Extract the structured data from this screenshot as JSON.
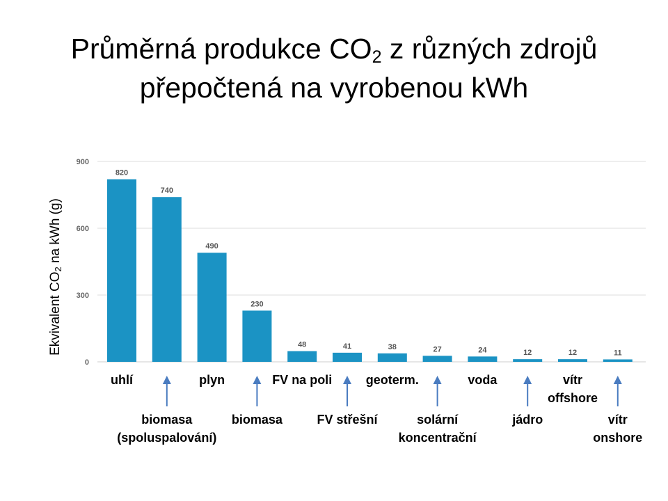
{
  "title": {
    "line1_pre": "Průměrná produkce CO",
    "line1_sub": "2",
    "line1_post": " z různých zdrojů",
    "line2": "přepočtená na vyrobenou kWh"
  },
  "y_axis_label": {
    "pre": "Ekvivalent CO",
    "sub": "2",
    "post": " na kWh (g)"
  },
  "colors": {
    "bar": "#1b93c4",
    "grid": "#dddddd",
    "arrow": "#4a7cc0"
  },
  "chart_data": {
    "type": "bar",
    "title": "Průměrná produkce CO2 z různých zdrojů přepočtená na vyrobenou kWh",
    "ylabel": "Ekvivalent CO2 na kWh (g)",
    "xlabel": "",
    "ylim": [
      0,
      900
    ],
    "yticks": [
      0,
      300,
      600,
      900
    ],
    "grid": true,
    "categories": [
      "uhlí",
      "biomasa (spoluspalování)",
      "plyn",
      "biomasa",
      "FV na poli",
      "FV střešní",
      "geoterm.",
      "solární koncentrační",
      "voda",
      "jádro",
      "vítr offshore",
      "vítr onshore"
    ],
    "values": [
      820,
      740,
      490,
      230,
      48,
      41,
      38,
      27,
      24,
      12,
      12,
      11
    ],
    "data_labels": [
      "820",
      "740",
      "490",
      "230",
      "48",
      "41",
      "38",
      "27",
      "24",
      "12",
      "12",
      "11"
    ]
  },
  "category_labels": [
    {
      "lines": [
        "uhlí"
      ],
      "row": "upper",
      "arrow": false
    },
    {
      "lines": [
        "biomasa",
        "(spoluspalování)"
      ],
      "row": "lower",
      "arrow": true
    },
    {
      "lines": [
        "plyn"
      ],
      "row": "upper",
      "arrow": false
    },
    {
      "lines": [
        "biomasa"
      ],
      "row": "lower",
      "arrow": true
    },
    {
      "lines": [
        "FV na poli"
      ],
      "row": "upper",
      "arrow": false
    },
    {
      "lines": [
        "FV střešní"
      ],
      "row": "lower",
      "arrow": true
    },
    {
      "lines": [
        "geoterm."
      ],
      "row": "upper",
      "arrow": false
    },
    {
      "lines": [
        "solární",
        "koncentrační"
      ],
      "row": "lower",
      "arrow": true
    },
    {
      "lines": [
        "voda"
      ],
      "row": "upper",
      "arrow": false
    },
    {
      "lines": [
        "jádro"
      ],
      "row": "lower",
      "arrow": true
    },
    {
      "lines": [
        "vítr",
        "offshore"
      ],
      "row": "upper",
      "arrow": false
    },
    {
      "lines": [
        "vítr",
        "onshore"
      ],
      "row": "lower",
      "arrow": true
    }
  ]
}
